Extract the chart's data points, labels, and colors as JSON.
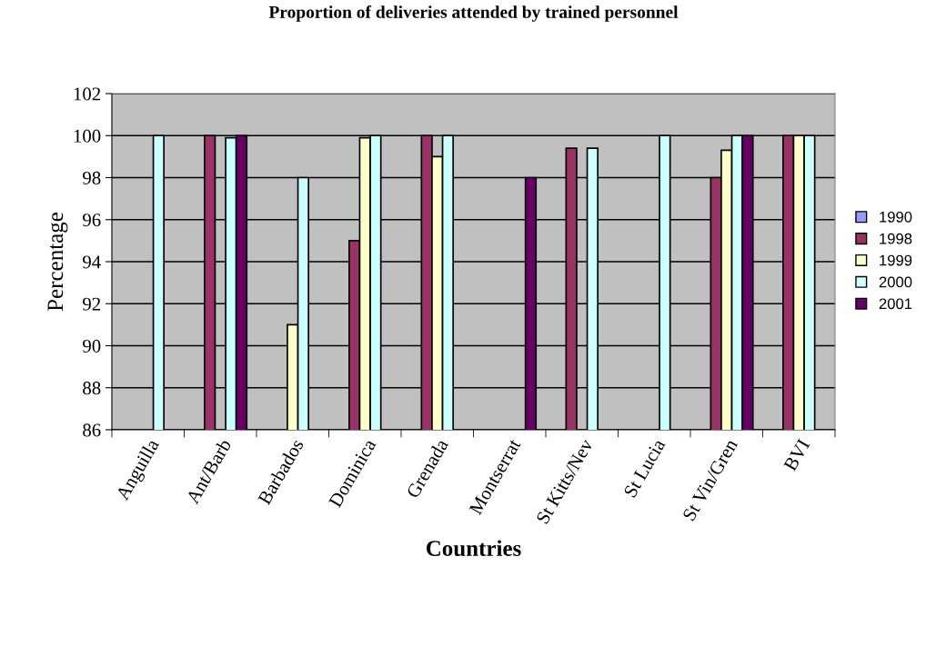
{
  "chart_data": {
    "type": "bar",
    "title": "Proportion of deliveries attended by trained personnel",
    "xlabel": "Countries",
    "ylabel": "Percentage",
    "categories": [
      "Anguilla",
      "Ant/Barb",
      "Barbados",
      "Dominica",
      "Grenada",
      "Montserrat",
      "St Kitts/Nev",
      "St Lucia",
      "St Vin/Gren",
      "BVI"
    ],
    "series": [
      {
        "name": "1990",
        "color": "#9999ff",
        "values": [
          null,
          null,
          null,
          null,
          null,
          null,
          null,
          null,
          null,
          null
        ]
      },
      {
        "name": "1998",
        "color": "#993366",
        "values": [
          null,
          100,
          null,
          95,
          100,
          null,
          99.4,
          null,
          98,
          100
        ]
      },
      {
        "name": "1999",
        "color": "#ffffcc",
        "values": [
          null,
          null,
          91,
          99.9,
          99,
          null,
          null,
          null,
          99.3,
          100
        ]
      },
      {
        "name": "2000",
        "color": "#ccffff",
        "values": [
          100,
          99.9,
          98,
          100,
          100,
          null,
          99.4,
          100,
          100,
          100
        ]
      },
      {
        "name": "2001",
        "color": "#660066",
        "values": [
          null,
          100,
          null,
          null,
          null,
          98,
          null,
          null,
          100,
          null
        ]
      }
    ],
    "ylim": [
      86,
      102
    ],
    "yticks": [
      86,
      88,
      90,
      92,
      94,
      96,
      98,
      100,
      102
    ],
    "grid": "y",
    "legend": "right"
  }
}
